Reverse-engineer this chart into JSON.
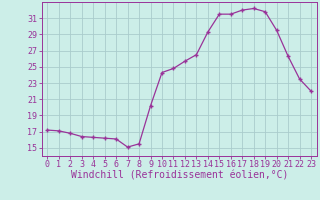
{
  "x": [
    0,
    1,
    2,
    3,
    4,
    5,
    6,
    7,
    8,
    9,
    10,
    11,
    12,
    13,
    14,
    15,
    16,
    17,
    18,
    19,
    20,
    21,
    22,
    23
  ],
  "y": [
    17.2,
    17.1,
    16.8,
    16.4,
    16.3,
    16.2,
    16.1,
    15.1,
    15.5,
    20.2,
    24.3,
    24.8,
    25.7,
    26.5,
    29.3,
    31.5,
    31.5,
    32.0,
    32.2,
    31.8,
    29.5,
    26.3,
    23.5,
    22.0
  ],
  "line_color": "#993399",
  "marker": "+",
  "bg_color": "#cceee8",
  "grid_color": "#aacccc",
  "axis_color": "#993399",
  "tick_color": "#993399",
  "xlabel": "Windchill (Refroidissement éolien,°C)",
  "ylim": [
    14.0,
    33.0
  ],
  "yticks": [
    15,
    17,
    19,
    21,
    23,
    25,
    27,
    29,
    31
  ],
  "xticks": [
    0,
    1,
    2,
    3,
    4,
    5,
    6,
    7,
    8,
    9,
    10,
    11,
    12,
    13,
    14,
    15,
    16,
    17,
    18,
    19,
    20,
    21,
    22,
    23
  ],
  "font_color": "#993399",
  "tick_fontsize": 6,
  "xlabel_fontsize": 7
}
